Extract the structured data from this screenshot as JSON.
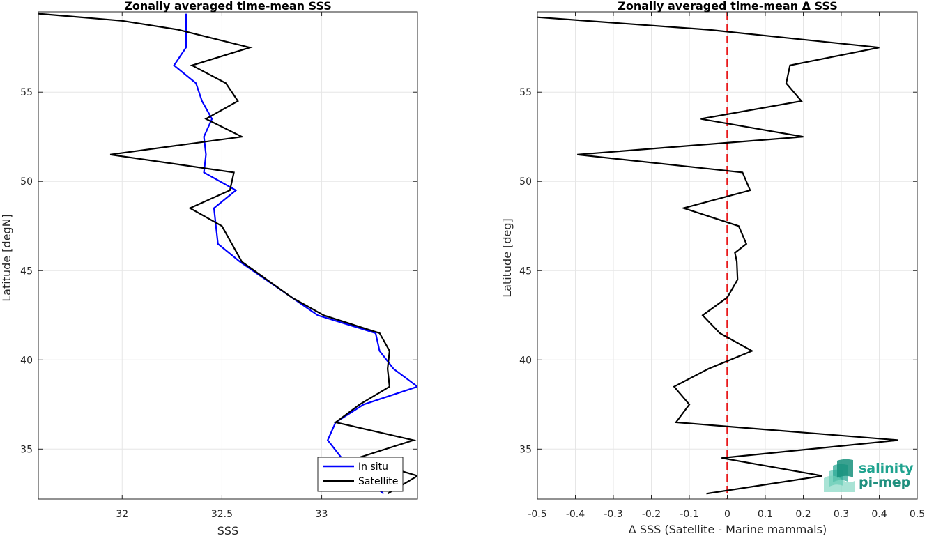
{
  "chart_data": [
    {
      "type": "line",
      "title": "Zonally averaged time-mean SSS",
      "xlabel": "SSS",
      "ylabel": "Latitude [degN]",
      "xlim": [
        31.58,
        33.48
      ],
      "ylim": [
        32.2,
        59.5
      ],
      "xticks": [
        32,
        32.5,
        33
      ],
      "xtick_labels": [
        "32",
        "32.5",
        "33"
      ],
      "yticks": [
        35,
        40,
        45,
        50,
        55
      ],
      "ytick_labels": [
        "35",
        "40",
        "45",
        "50",
        "55"
      ],
      "grid": true,
      "legend_position": "bottom-right",
      "series": [
        {
          "name": "In situ",
          "color": "#0000ff",
          "points": [
            [
              32.32,
              59.4
            ],
            [
              32.32,
              58.5
            ],
            [
              32.32,
              57.5
            ],
            [
              32.26,
              56.5
            ],
            [
              32.37,
              55.5
            ],
            [
              32.4,
              54.5
            ],
            [
              32.45,
              53.5
            ],
            [
              32.41,
              52.5
            ],
            [
              32.42,
              51.5
            ],
            [
              32.41,
              50.5
            ],
            [
              32.57,
              49.5
            ],
            [
              32.46,
              48.5
            ],
            [
              32.47,
              47.5
            ],
            [
              32.48,
              46.5
            ],
            [
              32.59,
              45.5
            ],
            [
              32.85,
              43.5
            ],
            [
              32.98,
              42.5
            ],
            [
              33.27,
              41.5
            ],
            [
              33.29,
              40.5
            ],
            [
              33.36,
              39.5
            ],
            [
              33.48,
              38.5
            ],
            [
              33.21,
              37.5
            ],
            [
              33.07,
              36.5
            ],
            [
              33.03,
              35.5
            ],
            [
              33.1,
              34.5
            ],
            [
              33.2,
              33.5
            ],
            [
              33.31,
              32.5
            ]
          ]
        },
        {
          "name": "Satellite",
          "color": "#000000",
          "points": [
            [
              31.58,
              59.4
            ],
            [
              32.0,
              59.0
            ],
            [
              32.28,
              58.5
            ],
            [
              32.64,
              57.5
            ],
            [
              32.35,
              56.5
            ],
            [
              32.52,
              55.5
            ],
            [
              32.58,
              54.5
            ],
            [
              32.42,
              53.5
            ],
            [
              32.6,
              52.5
            ],
            [
              31.94,
              51.5
            ],
            [
              32.56,
              50.5
            ],
            [
              32.54,
              49.5
            ],
            [
              32.34,
              48.5
            ],
            [
              32.5,
              47.5
            ],
            [
              32.6,
              45.5
            ],
            [
              32.85,
              43.5
            ],
            [
              33.01,
              42.5
            ],
            [
              33.29,
              41.5
            ],
            [
              33.34,
              40.5
            ],
            [
              33.33,
              39.5
            ],
            [
              33.34,
              38.5
            ],
            [
              33.19,
              37.5
            ],
            [
              33.07,
              36.5
            ],
            [
              33.46,
              35.5
            ],
            [
              33.18,
              34.5
            ],
            [
              33.48,
              33.5
            ],
            [
              33.33,
              32.5
            ]
          ]
        }
      ]
    },
    {
      "type": "line",
      "title": "Zonally averaged time-mean Δ SSS",
      "xlabel": "Δ SSS (Satellite - Marine mammals)",
      "ylabel": "Latitude [deg]",
      "xlim": [
        -0.5,
        0.5
      ],
      "ylim": [
        32.2,
        59.5
      ],
      "xticks": [
        -0.5,
        -0.4,
        -0.3,
        -0.2,
        -0.1,
        0,
        0.1,
        0.2,
        0.3,
        0.4,
        0.5
      ],
      "xtick_labels": [
        "-0.5",
        "-0.4",
        "-0.3",
        "-0.2",
        "-0.1",
        "0",
        "0.1",
        "0.2",
        "0.3",
        "0.4",
        "0.5"
      ],
      "yticks": [
        35,
        40,
        45,
        50,
        55
      ],
      "ytick_labels": [
        "35",
        "40",
        "45",
        "50",
        "55"
      ],
      "grid": true,
      "reference_line": {
        "x": 0,
        "color": "#e8191b",
        "style": "dashed"
      },
      "series": [
        {
          "color": "#000000",
          "points": [
            [
              -0.5,
              59.2
            ],
            [
              -0.05,
              58.5
            ],
            [
              0.4,
              57.5
            ],
            [
              0.165,
              56.5
            ],
            [
              0.155,
              55.5
            ],
            [
              0.195,
              54.5
            ],
            [
              -0.07,
              53.5
            ],
            [
              0.2,
              52.5
            ],
            [
              -0.395,
              51.5
            ],
            [
              0.04,
              50.5
            ],
            [
              0.06,
              49.5
            ],
            [
              -0.115,
              48.5
            ],
            [
              0.03,
              47.5
            ],
            [
              0.05,
              46.5
            ],
            [
              0.02,
              46.0
            ],
            [
              0.025,
              45.5
            ],
            [
              0.027,
              44.5
            ],
            [
              0.0,
              43.5
            ],
            [
              -0.065,
              42.5
            ],
            [
              -0.02,
              41.5
            ],
            [
              0.065,
              40.5
            ],
            [
              -0.05,
              39.5
            ],
            [
              -0.14,
              38.5
            ],
            [
              -0.1,
              37.5
            ],
            [
              -0.135,
              36.5
            ],
            [
              0.45,
              35.5
            ],
            [
              -0.015,
              34.5
            ],
            [
              0.25,
              33.5
            ],
            [
              -0.055,
              32.5
            ]
          ]
        }
      ]
    }
  ],
  "logo": {
    "line1": "salinity",
    "line2": "pi-mep"
  }
}
